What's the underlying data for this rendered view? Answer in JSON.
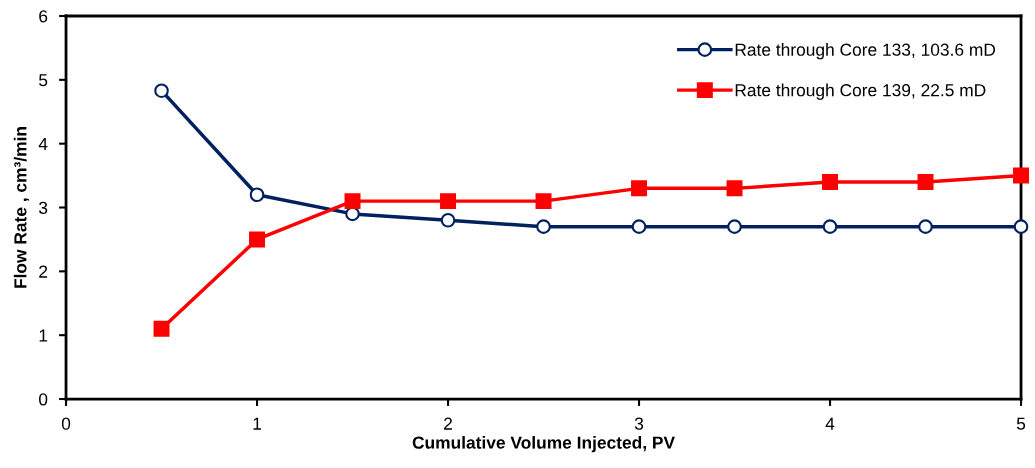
{
  "chart_data": {
    "type": "line",
    "xlabel": "Cumulative Volume Injected, PV",
    "ylabel": "Flow Rate , cm³/min",
    "x": [
      0.5,
      1.0,
      1.5,
      2.0,
      2.5,
      3.0,
      3.5,
      4.0,
      4.5,
      5.0
    ],
    "series": [
      {
        "name": "Rate through Core 133, 103.6 mD",
        "color": "#002060",
        "marker": "circle",
        "values": [
          4.83,
          3.2,
          2.9,
          2.8,
          2.7,
          2.7,
          2.7,
          2.7,
          2.7,
          2.7
        ]
      },
      {
        "name": "Rate through Core 139, 22.5 mD",
        "color": "#ff0000",
        "marker": "square",
        "values": [
          1.1,
          2.5,
          3.1,
          3.1,
          3.1,
          3.3,
          3.3,
          3.4,
          3.4,
          3.5
        ]
      }
    ],
    "xlim": [
      0,
      5
    ],
    "xticks": [
      0,
      1,
      2,
      3,
      4,
      5
    ],
    "ylim": [
      0,
      6
    ],
    "yticks": [
      0,
      1,
      2,
      3,
      4,
      5,
      6
    ],
    "grid": false,
    "legend": "top right",
    "line_style": "solid"
  }
}
